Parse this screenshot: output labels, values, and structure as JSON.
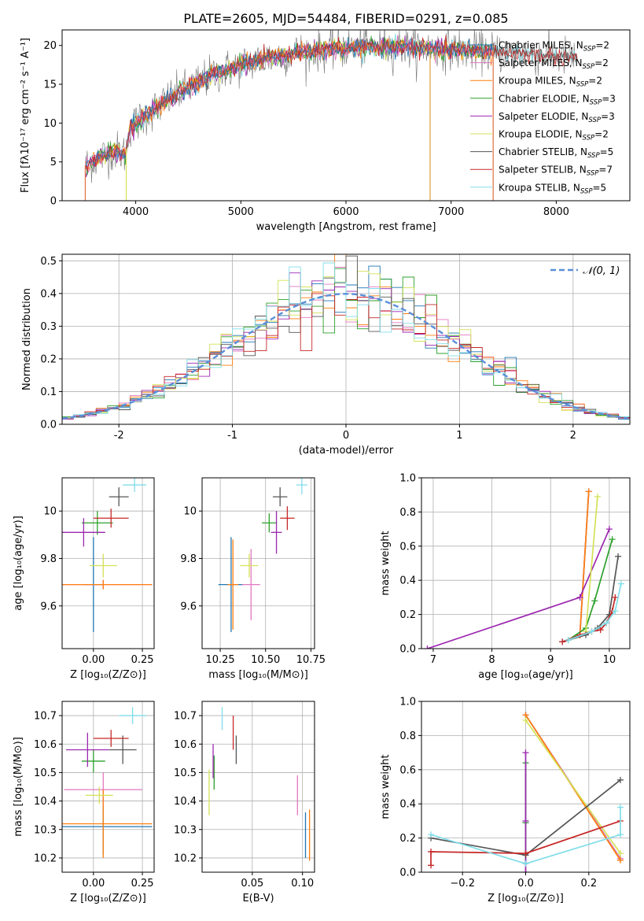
{
  "figure_title": "PLATE=2605, MJD=54484, FIBERID=0291, z=0.085",
  "models": [
    {
      "name": "Chabrier MILES",
      "nssp": "2",
      "color": "#1f77b4"
    },
    {
      "name": "Salpeter MILES",
      "nssp": "2",
      "color": "#e377c2"
    },
    {
      "name": "Kroupa MILES",
      "nssp": "2",
      "color": "#ff7f0e"
    },
    {
      "name": "Chabrier ELODIE",
      "nssp": "3",
      "color": "#2ca02c"
    },
    {
      "name": "Salpeter ELODIE",
      "nssp": "3",
      "color": "#9c27b0"
    },
    {
      "name": "Kroupa ELODIE",
      "nssp": "2",
      "color": "#d4e157"
    },
    {
      "name": "Chabrier STELIB",
      "nssp": "5",
      "color": "#555555"
    },
    {
      "name": "Salpeter STELIB",
      "nssp": "7",
      "color": "#c62828"
    },
    {
      "name": "Kroupa STELIB",
      "nssp": "5",
      "color": "#80deea"
    }
  ],
  "nssp_prefix": "N",
  "nssp_sub": "SSP",
  "chart_data": [
    {
      "id": "spectrum",
      "type": "line",
      "title": "PLATE=2605, MJD=54484, FIBERID=0291, z=0.085",
      "xlabel": "wavelength [Angstrom, rest frame]",
      "ylabel": "Flux [fλ10⁻¹⁷ erg cm⁻² s⁻¹ A⁻¹]",
      "xlim": [
        3300,
        8700
      ],
      "ylim": [
        0,
        22
      ],
      "xticks": [
        4000,
        5000,
        6000,
        7000,
        8000
      ],
      "yticks": [
        0,
        5,
        10,
        15,
        20
      ],
      "grid": false,
      "legend": "upper right",
      "continuum": {
        "x": [
          3520,
          3650,
          3800,
          3900,
          3950,
          4100,
          4300,
          4500,
          4700,
          5000,
          5300,
          5600,
          5900,
          6200,
          6500,
          6800,
          7000,
          7200,
          7400,
          7600,
          7800,
          8000,
          8200
        ],
        "y": [
          4.5,
          5.5,
          6.5,
          6.0,
          9.5,
          11.0,
          13.0,
          14.5,
          16.0,
          17.5,
          18.5,
          19.2,
          19.5,
          19.8,
          19.8,
          19.6,
          19.5,
          19.3,
          19.2,
          19.0,
          18.8,
          18.6,
          18.4
        ]
      }
    },
    {
      "id": "residuals",
      "type": "bar",
      "xlabel": "(data-model)/error",
      "ylabel": "Normed distribution",
      "xlim": [
        -2.5,
        2.5
      ],
      "ylim": [
        0,
        0.52
      ],
      "xticks": [
        -2,
        -1,
        0,
        1,
        2
      ],
      "yticks": [
        0.0,
        0.1,
        0.2,
        0.3,
        0.4,
        0.5
      ],
      "grid": true,
      "legend": "upper right",
      "reference_label": "𝒩(0, 1)",
      "reference_mean": 0,
      "reference_sigma": 1,
      "bin_width": 0.1
    },
    {
      "id": "age-vs-Z",
      "type": "scatter",
      "xlabel": "Z [log₁₀(Z/Z⊙)]",
      "ylabel": "age  [log₁₀(age/yr)]",
      "xlim": [
        -0.16,
        0.31
      ],
      "ylim": [
        9.42,
        10.14
      ],
      "xticks": [
        0.0,
        0.25
      ],
      "xticklabels": [
        "0.00",
        "0.25"
      ],
      "yticks": [
        9.6,
        9.8,
        10.0
      ],
      "grid": true,
      "points": [
        {
          "x": 0.0,
          "y": 9.69,
          "xerr": 0.05,
          "yerr": 0.2,
          "model": 0
        },
        {
          "x": 0.05,
          "y": 9.69,
          "xerr": 0.25,
          "yerr": 0.02,
          "model": 1
        },
        {
          "x": 0.05,
          "y": 9.69,
          "xerr": 0.25,
          "yerr": 0.02,
          "model": 2
        },
        {
          "x": 0.02,
          "y": 9.95,
          "xerr": 0.08,
          "yerr": 0.05,
          "model": 3
        },
        {
          "x": -0.05,
          "y": 9.91,
          "xerr": 0.11,
          "yerr": 0.06,
          "model": 4
        },
        {
          "x": 0.05,
          "y": 9.77,
          "xerr": 0.07,
          "yerr": 0.05,
          "model": 5
        },
        {
          "x": 0.13,
          "y": 10.06,
          "xerr": 0.05,
          "yerr": 0.04,
          "model": 6
        },
        {
          "x": 0.09,
          "y": 9.97,
          "xerr": 0.09,
          "yerr": 0.04,
          "model": 7
        },
        {
          "x": 0.21,
          "y": 10.11,
          "xerr": 0.06,
          "yerr": 0.03,
          "model": 8
        }
      ]
    },
    {
      "id": "age-vs-mass",
      "type": "scatter",
      "xlabel": "mass [log₁₀(M/M⊙)]",
      "ylabel": "",
      "xlim": [
        10.15,
        10.77
      ],
      "ylim": [
        9.42,
        10.14
      ],
      "xticks": [
        10.25,
        10.5,
        10.75
      ],
      "xticklabels": [
        "10.25",
        "10.50",
        "10.75"
      ],
      "yticks": [
        9.6,
        9.8,
        10.0
      ],
      "grid": true,
      "points": [
        {
          "x": 10.31,
          "y": 9.69,
          "xerr": 0.07,
          "yerr": 0.2,
          "model": 0
        },
        {
          "x": 10.42,
          "y": 9.69,
          "xerr": 0.05,
          "yerr": 0.15,
          "model": 1
        },
        {
          "x": 10.32,
          "y": 9.69,
          "xerr": 0.03,
          "yerr": 0.19,
          "model": 2
        },
        {
          "x": 10.52,
          "y": 9.95,
          "xerr": 0.04,
          "yerr": 0.04,
          "model": 3
        },
        {
          "x": 10.56,
          "y": 9.91,
          "xerr": 0.03,
          "yerr": 0.09,
          "model": 4
        },
        {
          "x": 10.41,
          "y": 9.77,
          "xerr": 0.05,
          "yerr": 0.05,
          "model": 5
        },
        {
          "x": 10.58,
          "y": 10.06,
          "xerr": 0.04,
          "yerr": 0.04,
          "model": 6
        },
        {
          "x": 10.62,
          "y": 9.97,
          "xerr": 0.04,
          "yerr": 0.05,
          "model": 7
        },
        {
          "x": 10.7,
          "y": 10.11,
          "xerr": 0.03,
          "yerr": 0.04,
          "model": 8
        }
      ]
    },
    {
      "id": "weight-vs-age",
      "type": "line",
      "xlabel": "age  [log₁₀(age/yr)]",
      "ylabel": "mass weight",
      "xlim": [
        6.8,
        10.35
      ],
      "ylim": [
        0,
        1
      ],
      "xticks": [
        7,
        8,
        9,
        10
      ],
      "yticks": [
        0.0,
        0.2,
        0.4,
        0.6,
        0.8,
        1.0
      ],
      "grid": true,
      "series": [
        {
          "model": 0,
          "x": [
            9.5,
            9.65
          ],
          "y": [
            0.08,
            0.92
          ]
        },
        {
          "model": 1,
          "x": [
            9.5,
            9.65
          ],
          "y": [
            0.08,
            0.92
          ]
        },
        {
          "model": 2,
          "x": [
            9.5,
            9.65
          ],
          "y": [
            0.08,
            0.92
          ]
        },
        {
          "model": 3,
          "x": [
            9.3,
            9.6,
            9.75,
            10.05
          ],
          "y": [
            0.05,
            0.12,
            0.28,
            0.64
          ]
        },
        {
          "model": 4,
          "x": [
            6.9,
            9.5,
            10.0
          ],
          "y": [
            0.0,
            0.3,
            0.7
          ]
        },
        {
          "model": 5,
          "x": [
            9.6,
            9.8
          ],
          "y": [
            0.1,
            0.89
          ]
        },
        {
          "model": 6,
          "x": [
            9.2,
            9.6,
            9.8,
            10.0,
            10.15
          ],
          "y": [
            0.04,
            0.08,
            0.12,
            0.2,
            0.54
          ]
        },
        {
          "model": 7,
          "x": [
            9.2,
            9.5,
            9.7,
            9.85,
            9.95,
            10.05,
            10.1
          ],
          "y": [
            0.04,
            0.08,
            0.1,
            0.11,
            0.15,
            0.22,
            0.3
          ]
        },
        {
          "model": 8,
          "x": [
            9.3,
            9.7,
            9.95,
            10.1,
            10.2
          ],
          "y": [
            0.05,
            0.1,
            0.15,
            0.22,
            0.38
          ]
        }
      ]
    },
    {
      "id": "mass-vs-Z",
      "type": "scatter",
      "xlabel": "Z [log₁₀(Z/Z⊙)]",
      "ylabel": "mass [log₁₀(M/M⊙)]",
      "xlim": [
        -0.16,
        0.31
      ],
      "ylim": [
        10.15,
        10.75
      ],
      "xticks": [
        0.0,
        0.25
      ],
      "xticklabels": [
        "0.00",
        "0.25"
      ],
      "yticks": [
        10.2,
        10.3,
        10.4,
        10.5,
        10.6,
        10.7
      ],
      "grid": true,
      "points": [
        {
          "x": 0.05,
          "y": 10.31,
          "xerr": 0.25,
          "yerr": 0.1,
          "model": 0
        },
        {
          "x": 0.05,
          "y": 10.44,
          "xerr": 0.2,
          "yerr": 0.06,
          "model": 1
        },
        {
          "x": 0.05,
          "y": 10.32,
          "xerr": 0.25,
          "yerr": 0.12,
          "model": 2
        },
        {
          "x": 0.0,
          "y": 10.54,
          "xerr": 0.06,
          "yerr": 0.04,
          "model": 3
        },
        {
          "x": -0.03,
          "y": 10.58,
          "xerr": 0.11,
          "yerr": 0.06,
          "model": 4
        },
        {
          "x": 0.03,
          "y": 10.42,
          "xerr": 0.07,
          "yerr": 0.03,
          "model": 5
        },
        {
          "x": 0.15,
          "y": 10.58,
          "xerr": 0.07,
          "yerr": 0.05,
          "model": 6
        },
        {
          "x": 0.09,
          "y": 10.62,
          "xerr": 0.09,
          "yerr": 0.03,
          "model": 7
        },
        {
          "x": 0.2,
          "y": 10.7,
          "xerr": 0.07,
          "yerr": 0.03,
          "model": 8
        }
      ]
    },
    {
      "id": "mass-vs-EBV",
      "type": "scatter",
      "xlabel": "E(B-V)",
      "ylabel": "",
      "xlim": [
        0.0,
        0.112
      ],
      "ylim": [
        10.15,
        10.75
      ],
      "xticks": [
        0.05,
        0.1
      ],
      "xticklabels": [
        "0.05",
        "0.10"
      ],
      "yticks": [
        10.2,
        10.3,
        10.4,
        10.5,
        10.6,
        10.7
      ],
      "grid": true,
      "points": [
        {
          "x": 0.103,
          "y": 10.28,
          "xerr": 0.0,
          "yerr": 0.08,
          "model": 0
        },
        {
          "x": 0.095,
          "y": 10.42,
          "xerr": 0.0,
          "yerr": 0.07,
          "model": 1
        },
        {
          "x": 0.107,
          "y": 10.28,
          "xerr": 0.0,
          "yerr": 0.09,
          "model": 2
        },
        {
          "x": 0.012,
          "y": 10.5,
          "xerr": 0.0,
          "yerr": 0.06,
          "model": 3
        },
        {
          "x": 0.011,
          "y": 10.54,
          "xerr": 0.0,
          "yerr": 0.06,
          "model": 4
        },
        {
          "x": 0.007,
          "y": 10.43,
          "xerr": 0.0,
          "yerr": 0.08,
          "model": 5
        },
        {
          "x": 0.034,
          "y": 10.58,
          "xerr": 0.0,
          "yerr": 0.05,
          "model": 6
        },
        {
          "x": 0.031,
          "y": 10.64,
          "xerr": 0.0,
          "yerr": 0.06,
          "model": 7
        },
        {
          "x": 0.02,
          "y": 10.69,
          "xerr": 0.0,
          "yerr": 0.04,
          "model": 8
        }
      ]
    },
    {
      "id": "weight-vs-Z",
      "type": "line",
      "xlabel": "Z [log₁₀(Z/Z⊙)]",
      "ylabel": "mass weight",
      "xlim": [
        -0.33,
        0.33
      ],
      "ylim": [
        0,
        1
      ],
      "xticks": [
        -0.2,
        0.0,
        0.2
      ],
      "xticklabels": [
        "−0.2",
        "0.0",
        "0.2"
      ],
      "yticks": [
        0.0,
        0.2,
        0.4,
        0.6,
        0.8,
        1.0
      ],
      "grid": true,
      "series": [
        {
          "model": 0,
          "x": [
            0.0,
            0.3
          ],
          "y": [
            0.92,
            0.08
          ]
        },
        {
          "model": 1,
          "x": [
            0.0,
            0.3
          ],
          "y": [
            0.92,
            0.08
          ]
        },
        {
          "model": 2,
          "x": [
            0.0,
            0.3
          ],
          "y": [
            0.92,
            0.07
          ]
        },
        {
          "model": 3,
          "x": [
            0.0,
            0.0,
            0.0
          ],
          "y": [
            0.05,
            0.29,
            0.64
          ]
        },
        {
          "model": 4,
          "x": [
            0.0,
            0.0,
            0.0
          ],
          "y": [
            0.0,
            0.3,
            0.7
          ]
        },
        {
          "model": 5,
          "x": [
            0.0,
            0.3
          ],
          "y": [
            0.89,
            0.11
          ]
        },
        {
          "model": 6,
          "x": [
            -0.3,
            0.0,
            0.3
          ],
          "y": [
            0.2,
            0.1,
            0.54
          ]
        },
        {
          "model": 7,
          "x": [
            -0.3,
            -0.3,
            0.0,
            0.3
          ],
          "y": [
            0.04,
            0.12,
            0.11,
            0.3
          ]
        },
        {
          "model": 8,
          "x": [
            -0.3,
            0.0,
            0.3,
            0.3
          ],
          "y": [
            0.22,
            0.05,
            0.22,
            0.38
          ]
        }
      ]
    }
  ]
}
